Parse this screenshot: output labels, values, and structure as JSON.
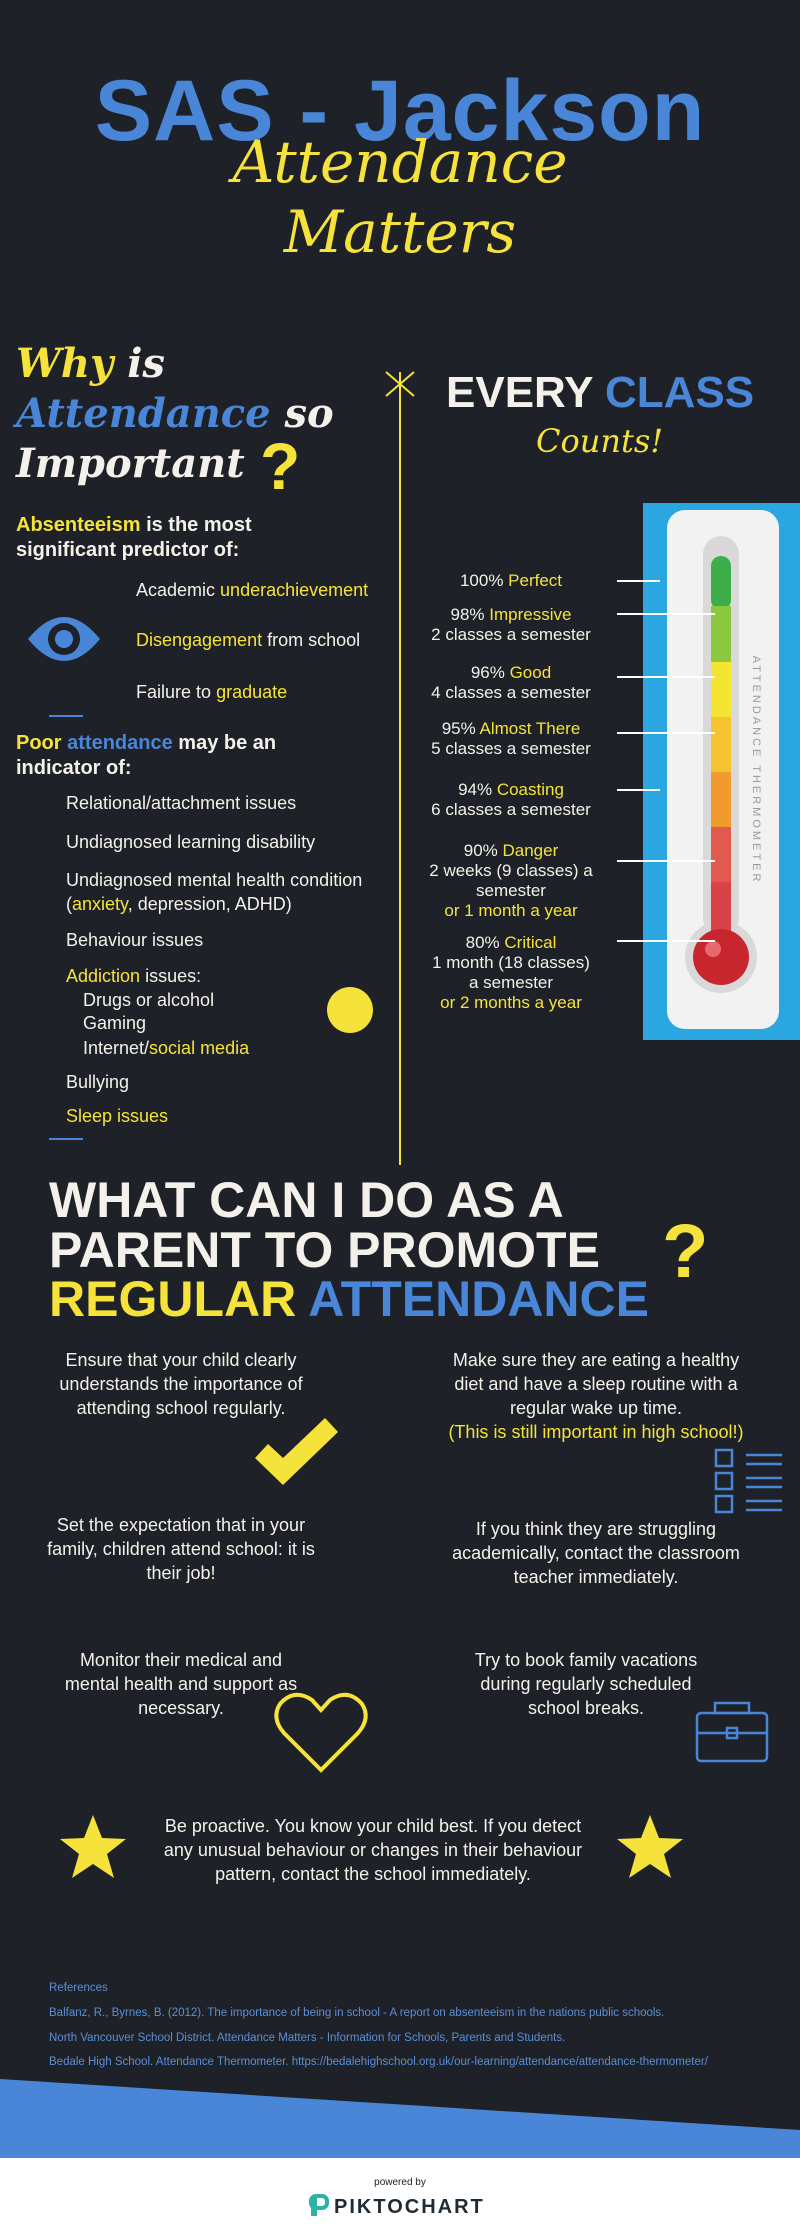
{
  "header": {
    "title": "SAS - Jackson",
    "subtitle": [
      "Attendance",
      "Matters"
    ]
  },
  "why": {
    "heading": [
      [
        "Why",
        "is"
      ],
      [
        "Attendance",
        "so"
      ],
      [
        "Important"
      ]
    ],
    "mark": "?",
    "predictor": [
      [
        "Absenteeism",
        "is the most"
      ],
      [
        "significant predictor of:"
      ]
    ],
    "outcomes": [
      [
        "Academic",
        "underachievement"
      ],
      [
        "Disengagement",
        "from school"
      ],
      [
        "Failure to",
        "graduate"
      ]
    ],
    "indicator": [
      [
        "Poor",
        "attendance",
        "may be an"
      ],
      [
        "indicator of:"
      ]
    ],
    "issues": [
      [
        "Relational/attachment issues"
      ],
      [
        "Undiagnosed learning disability"
      ],
      [
        "Undiagnosed mental health condition"
      ],
      [
        "(",
        "anxiety",
        ", depression, ADHD)"
      ],
      [
        "Behaviour issues"
      ],
      [
        "Addiction",
        "issues:"
      ],
      [
        "Drugs or alcohol"
      ],
      [
        "Gaming"
      ],
      [
        "Internet/",
        "social media"
      ],
      [
        "Bullying"
      ],
      [
        "Sleep issues"
      ]
    ]
  },
  "every_class": {
    "heading": [
      "EVERY",
      "CLASS"
    ],
    "sub": "Counts!",
    "thermometer_label": "ATTENDANCE THERMOMETER",
    "levels": [
      {
        "pct": "100%",
        "name": "Perfect",
        "detail": [],
        "extra": []
      },
      {
        "pct": "98%",
        "name": "Impressive",
        "detail": [
          "2 classes a semester"
        ],
        "extra": []
      },
      {
        "pct": "96%",
        "name": "Good",
        "detail": [
          "4 classes a semester"
        ],
        "extra": []
      },
      {
        "pct": "95%",
        "name": "Almost There",
        "detail": [
          "5 classes a semester"
        ],
        "extra": []
      },
      {
        "pct": "94%",
        "name": "Coasting",
        "detail": [
          "6 classes a semester"
        ],
        "extra": []
      },
      {
        "pct": "90%",
        "name": "Danger",
        "detail": [
          "2 weeks (9 classes) a",
          "semester"
        ],
        "extra": [
          "or 1 month a year"
        ]
      },
      {
        "pct": "80%",
        "name": "Critical",
        "detail": [
          "1 month (18 classes)",
          "a semester"
        ],
        "extra": [
          "or 2 months a year"
        ]
      }
    ]
  },
  "parents": {
    "heading": [
      "WHAT CAN I DO AS A",
      "PARENT TO PROMOTE"
    ],
    "heading_last": [
      "REGULAR",
      "ATTENDANCE"
    ],
    "mark": "?",
    "tips": [
      {
        "text": "Ensure that your child clearly understands the importance of attending school regularly."
      },
      {
        "text": "Make sure they are eating a healthy diet and have a sleep routine with a regular wake up time.",
        "note": "(This is still important in high school!)"
      },
      {
        "text": "Set the expectation that in your family, children attend school: it is their job!"
      },
      {
        "text": "If you think they are struggling academically, contact the classroom teacher immediately."
      },
      {
        "text": "Monitor their medical and mental health and support as necessary."
      },
      {
        "text": "Try to book family vacations during regularly scheduled school breaks."
      },
      {
        "text": "Be proactive.  You know your child best.  If you detect any unusual behaviour or changes in their behaviour pattern, contact the school immediately."
      }
    ]
  },
  "references": {
    "title": "References",
    "items": [
      "Balfanz, R., Byrnes, B. (2012). The importance of being in school - A report on absenteeism in the nations public schools.",
      "North Vancouver School District.  Attendance Matters - Information for Schools, Parents and Students.",
      "Bedale High School. Attendance Thermometer.  https://bedalehighschool.org.uk/our-learning/attendance/attendance-thermometer/"
    ]
  },
  "footer": {
    "powered": "powered by",
    "brand": "PIKTOCHART"
  }
}
